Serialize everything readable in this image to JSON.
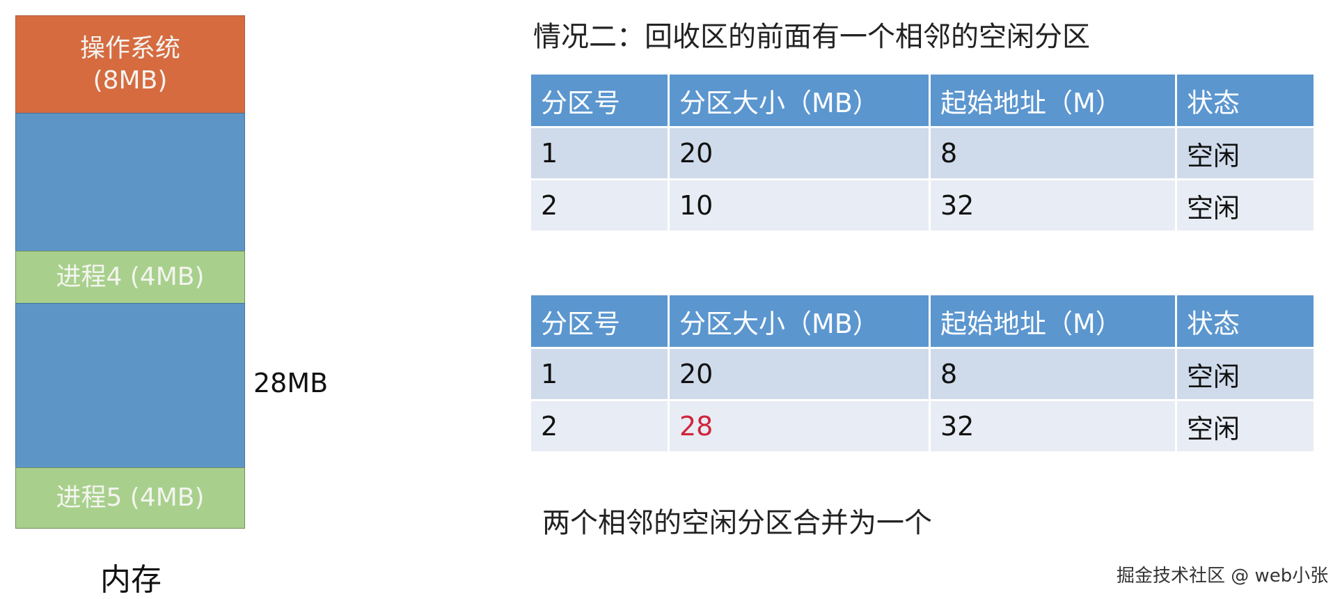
{
  "memory": {
    "os_label": "操作系统",
    "os_size": "(8MB)",
    "process4": "进程4 (4MB)",
    "process5": "进程5 (4MB)",
    "free_size_label": "28MB",
    "caption": "内存",
    "colors": {
      "os": "#d66b40",
      "free": "#5e95c7",
      "process": "#a8d08c"
    }
  },
  "title": "情况二：回收区的前面有一个相邻的空闲分区",
  "tables": [
    {
      "headers": [
        "分区号",
        "分区大小（MB）",
        "起始地址（M）",
        "状态"
      ],
      "rows": [
        [
          "1",
          "20",
          "8",
          "空闲"
        ],
        [
          "2",
          "10",
          "32",
          "空闲"
        ]
      ]
    },
    {
      "headers": [
        "分区号",
        "分区大小（MB）",
        "起始地址（M）",
        "状态"
      ],
      "rows": [
        [
          "1",
          "20",
          "8",
          "空闲"
        ],
        [
          "2",
          "28",
          "32",
          "空闲"
        ]
      ],
      "highlight_color": "#d0243a"
    }
  ],
  "note": "两个相邻的空闲分区合并为一个",
  "watermark": "掘金技术社区 @ web小张"
}
